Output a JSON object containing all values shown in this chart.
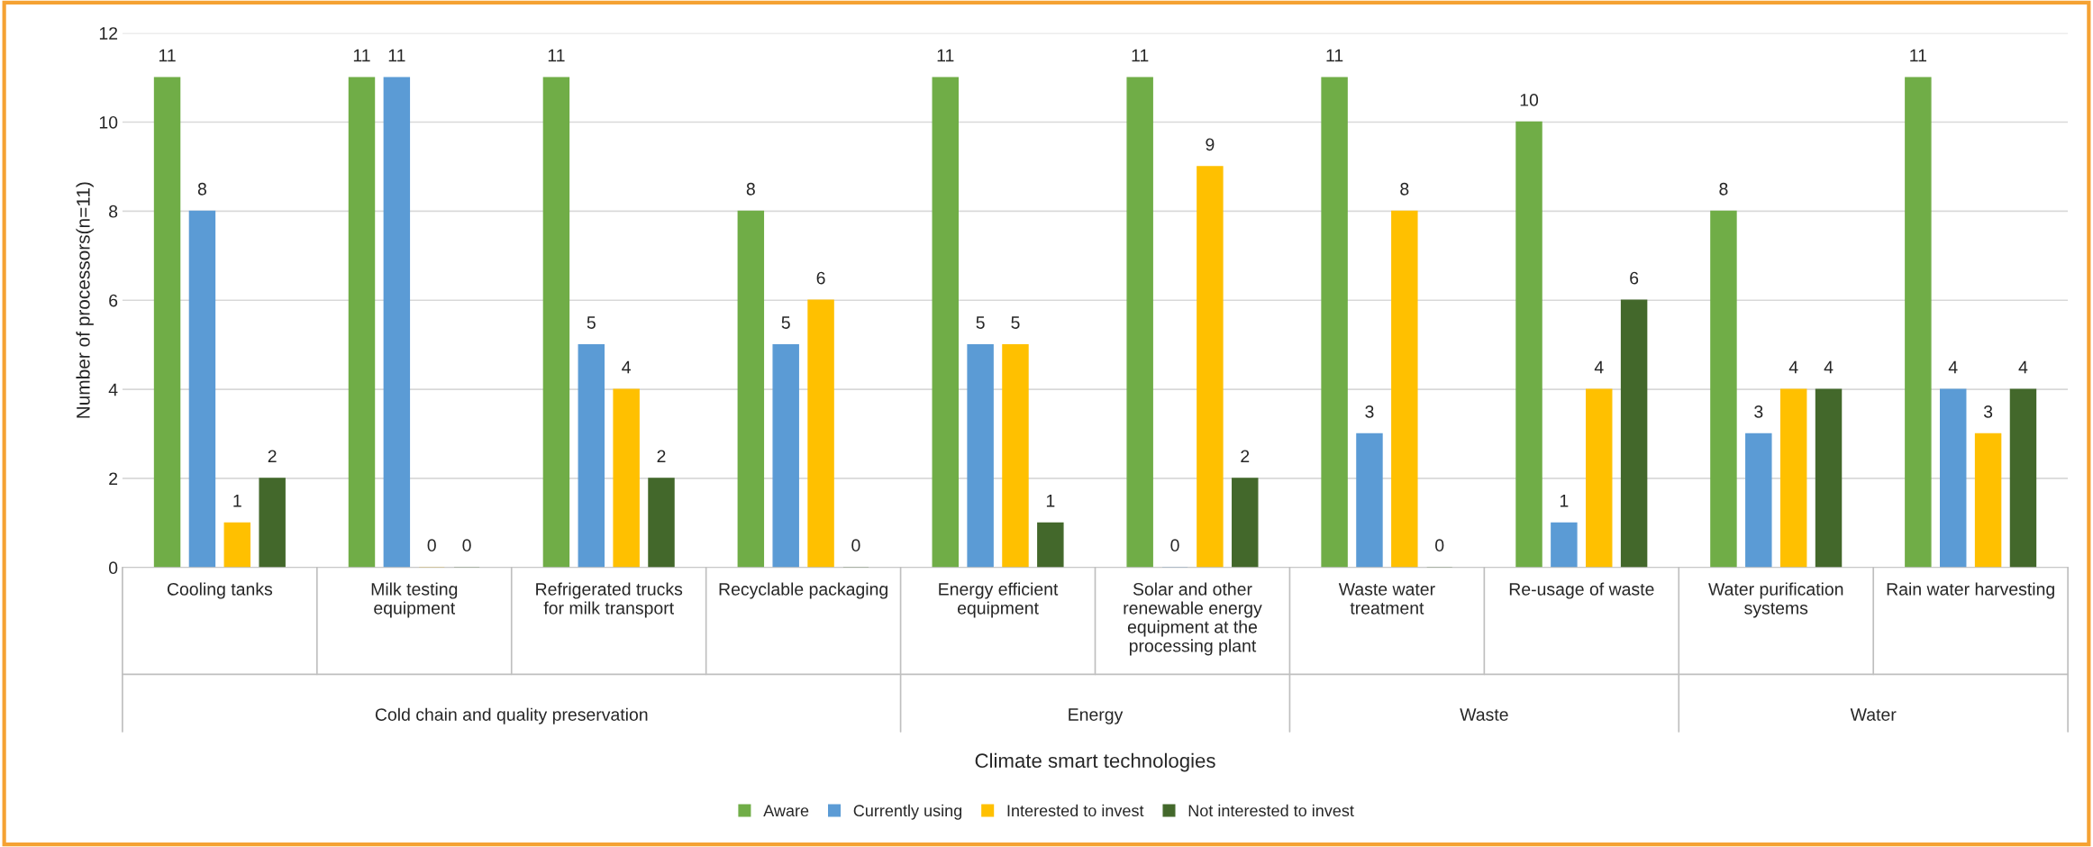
{
  "chart_data": {
    "type": "bar",
    "categories": [
      "Cooling tanks",
      "Milk testing\nequipment",
      "Refrigerated trucks\nfor milk transport",
      "Recyclable packaging",
      "Energy efficient\nequipment",
      "Solar and other\nrenewable energy\nequipment at the\nprocessing plant",
      "Waste water\ntreatment",
      "Re-usage of waste",
      "Water purification\nsystems",
      "Rain water harvesting"
    ],
    "series": [
      {
        "name": "Aware",
        "color": "#70ad47",
        "values": [
          11,
          11,
          11,
          8,
          11,
          11,
          11,
          10,
          8,
          11
        ]
      },
      {
        "name": "Currently using",
        "color": "#5b9bd5",
        "values": [
          8,
          11,
          5,
          5,
          5,
          0,
          3,
          1,
          3,
          4
        ]
      },
      {
        "name": "Interested to invest",
        "color": "#ffc000",
        "values": [
          1,
          0,
          4,
          6,
          5,
          9,
          8,
          4,
          4,
          3
        ]
      },
      {
        "name": "Not interested to invest",
        "color": "#43682b",
        "values": [
          2,
          0,
          2,
          0,
          1,
          2,
          0,
          6,
          4,
          4
        ]
      }
    ],
    "xlabel": "Climate smart technologies",
    "ylabel": "Number of processors(n=11)",
    "annotations": [
      "Cold chain and quality preservation",
      "Energy",
      "Waste",
      "Water"
    ],
    "ylim": [
      0,
      12
    ],
    "yticks": [
      0,
      2,
      4,
      6,
      8,
      10,
      12
    ],
    "grid": "y",
    "legend": "bottom",
    "data_labels": true
  }
}
